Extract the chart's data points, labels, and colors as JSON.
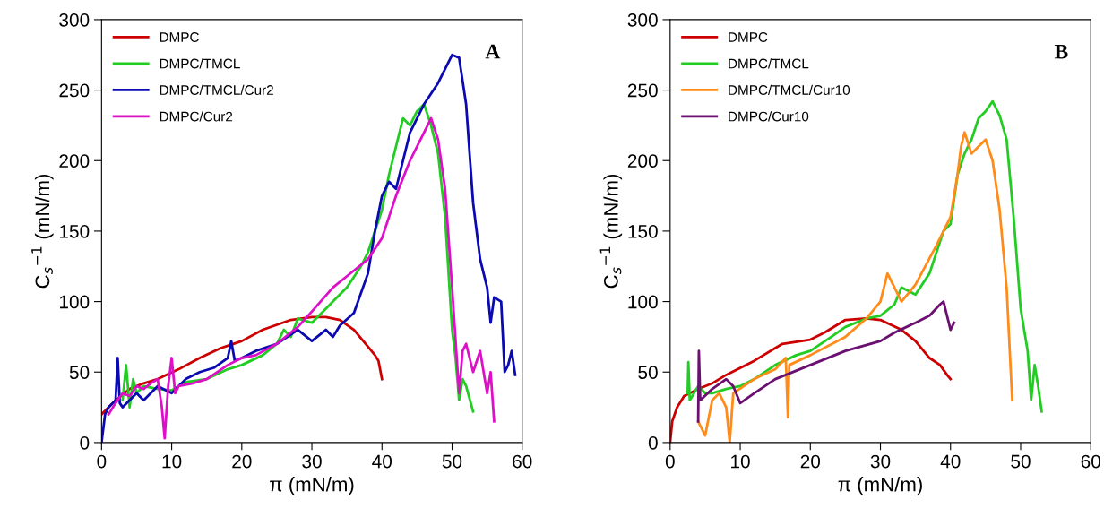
{
  "chart_data": [
    {
      "type": "line",
      "xlabel": "π (mN/m)",
      "ylabel": "C$_{s}$$^{−1}$ (mN/m)",
      "annotations": [
        "A"
      ],
      "xlim": [
        0,
        60
      ],
      "ylim": [
        0,
        300
      ],
      "xticks": [
        0,
        10,
        20,
        30,
        40,
        50,
        60
      ],
      "yticks": [
        0,
        50,
        100,
        150,
        200,
        250,
        300
      ],
      "grid": false,
      "legend": "top left",
      "line_style": "solid",
      "marker": "none",
      "series": [
        {
          "name": "DMPC",
          "color": "#cc0000",
          "x": [
            0,
            2,
            4,
            6,
            8,
            11,
            14,
            17,
            20,
            23,
            27,
            30,
            32,
            34,
            36,
            38,
            39,
            39.5,
            40
          ],
          "values": [
            20,
            30,
            38,
            42,
            45,
            52,
            60,
            67,
            72,
            80,
            87,
            89,
            89,
            87,
            80,
            68,
            62,
            58,
            45
          ]
        },
        {
          "name": "DMPC/TMCL",
          "color": "#22cc22",
          "x": [
            3,
            3.5,
            4,
            4.5,
            5,
            6,
            8,
            10,
            12,
            15,
            18,
            20,
            23,
            25,
            26,
            27,
            28,
            30,
            32,
            33,
            35,
            37,
            38,
            39,
            40,
            41,
            42,
            43,
            44,
            45,
            46,
            47,
            48,
            49,
            50,
            50.5,
            51,
            51.5,
            52,
            53
          ],
          "values": [
            30,
            55,
            25,
            45,
            35,
            40,
            38,
            37,
            43,
            45,
            52,
            55,
            62,
            70,
            80,
            75,
            88,
            85,
            95,
            100,
            110,
            125,
            135,
            150,
            165,
            190,
            210,
            230,
            225,
            235,
            240,
            225,
            205,
            160,
            80,
            60,
            30,
            45,
            40,
            22
          ]
        },
        {
          "name": "DMPC/TMCL/Cur2",
          "color": "#0a0ab0",
          "x": [
            0,
            0.5,
            1,
            2,
            2.3,
            2.6,
            3,
            5,
            6,
            8,
            10,
            12,
            14,
            16,
            18,
            18.5,
            19,
            20,
            22,
            25,
            28,
            30,
            32,
            33,
            34,
            36,
            38,
            39,
            40,
            41,
            42,
            44,
            46,
            48,
            50,
            51,
            52,
            53,
            54,
            55,
            55.5,
            56,
            57,
            57.5,
            58,
            58.5,
            59
          ],
          "values": [
            0,
            20,
            25,
            30,
            60,
            28,
            25,
            35,
            30,
            40,
            35,
            45,
            50,
            53,
            60,
            72,
            58,
            60,
            65,
            70,
            80,
            72,
            80,
            75,
            83,
            92,
            120,
            150,
            175,
            185,
            180,
            220,
            240,
            255,
            275,
            273,
            240,
            170,
            130,
            110,
            85,
            103,
            100,
            50,
            55,
            65,
            48
          ]
        },
        {
          "name": "DMPC/Cur2",
          "color": "#dd10c8",
          "x": [
            1,
            2,
            3,
            4,
            5,
            6,
            7,
            8,
            8.6,
            9,
            9.5,
            10,
            10.5,
            11,
            13,
            15,
            18,
            20,
            22,
            25,
            28,
            30,
            33,
            35,
            38,
            40,
            42,
            44,
            46,
            47,
            48,
            49,
            50,
            51,
            51.5,
            52,
            53,
            54,
            55,
            55.5,
            56
          ],
          "values": [
            20,
            28,
            35,
            33,
            40,
            38,
            42,
            45,
            25,
            3,
            40,
            60,
            35,
            40,
            42,
            45,
            55,
            60,
            62,
            70,
            82,
            93,
            110,
            118,
            130,
            145,
            175,
            200,
            220,
            230,
            215,
            180,
            110,
            35,
            65,
            70,
            50,
            65,
            35,
            50,
            15
          ]
        }
      ]
    },
    {
      "type": "line",
      "xlabel": "π (mN/m)",
      "ylabel": "C$_{s}$$^{−1}$ (mN/m)",
      "annotations": [
        "B"
      ],
      "xlim": [
        0,
        60
      ],
      "ylim": [
        0,
        300
      ],
      "xticks": [
        0,
        10,
        20,
        30,
        40,
        50,
        60
      ],
      "yticks": [
        0,
        50,
        100,
        150,
        200,
        250,
        300
      ],
      "grid": false,
      "legend": "top left",
      "line_style": "solid",
      "marker": "none",
      "series": [
        {
          "name": "DMPC",
          "color": "#cc0000",
          "x": [
            0,
            0.3,
            1,
            2,
            4,
            5,
            6,
            8,
            12,
            16,
            20,
            22,
            25,
            28,
            30,
            33,
            35,
            37,
            38.5,
            39.5,
            40
          ],
          "values": [
            0,
            15,
            25,
            33,
            38,
            40,
            42,
            48,
            58,
            70,
            73,
            78,
            87,
            88,
            87,
            80,
            72,
            60,
            55,
            48,
            45
          ]
        },
        {
          "name": "DMPC/TMCL",
          "color": "#22cc22",
          "x": [
            2.5,
            2.6,
            2.8,
            4,
            5,
            6,
            8,
            10,
            12,
            15,
            18,
            20,
            23,
            25,
            28,
            30,
            32,
            33,
            35,
            37,
            39,
            40,
            41,
            42,
            43,
            44,
            45,
            46,
            47,
            48,
            49,
            50,
            51,
            51.5,
            52,
            52.5,
            53
          ],
          "values": [
            35,
            57,
            30,
            40,
            35,
            35,
            38,
            40,
            45,
            55,
            62,
            65,
            75,
            82,
            88,
            90,
            98,
            110,
            105,
            120,
            150,
            155,
            190,
            205,
            215,
            230,
            235,
            242,
            232,
            215,
            160,
            95,
            65,
            30,
            55,
            40,
            22
          ]
        },
        {
          "name": "DMPC/TMCL/Cur10",
          "color": "#ff8c1a",
          "x": [
            4,
            5,
            6,
            7,
            8,
            8.5,
            9,
            12,
            15,
            16.5,
            16.8,
            17,
            20,
            25,
            28,
            30,
            31,
            32,
            33,
            35,
            38,
            40,
            41,
            41.5,
            42,
            43,
            44,
            45,
            46,
            47,
            48,
            48.5,
            48.8
          ],
          "values": [
            15,
            5,
            30,
            35,
            25,
            0,
            35,
            45,
            52,
            60,
            18,
            55,
            62,
            75,
            88,
            100,
            120,
            110,
            100,
            112,
            140,
            160,
            190,
            210,
            220,
            205,
            210,
            215,
            200,
            165,
            110,
            60,
            30
          ]
        },
        {
          "name": "DMPC/Cur10",
          "color": "#6a1070",
          "x": [
            4,
            4.1,
            4.3,
            6,
            8,
            9,
            10,
            12,
            15,
            20,
            25,
            30,
            32,
            35,
            37,
            38.5,
            39,
            39.5,
            40,
            40.5
          ],
          "values": [
            15,
            65,
            30,
            38,
            45,
            40,
            28,
            35,
            45,
            55,
            65,
            72,
            78,
            85,
            90,
            98,
            100,
            90,
            80,
            85
          ]
        }
      ]
    }
  ]
}
